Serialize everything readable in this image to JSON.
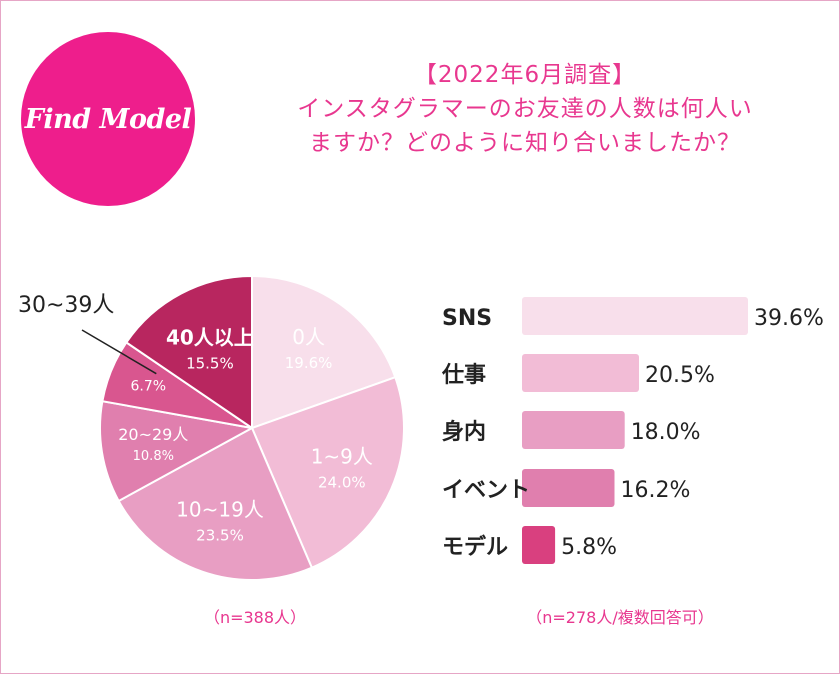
{
  "logo": {
    "text": "Find Model"
  },
  "title": {
    "line1": "【2022年6月調査】",
    "line2": "インスタグラマーのお友達の人数は何人い",
    "line3": "ますか？どのように知り合いましたか？"
  },
  "chart_data": [
    {
      "type": "pie",
      "categories": [
        "0人",
        "1~9人",
        "10~19人",
        "20~29人",
        "30~39人",
        "40人以上"
      ],
      "values": [
        19.6,
        24.0,
        23.5,
        10.8,
        6.7,
        15.5
      ],
      "value_labels": [
        "19.6%",
        "24.0%",
        "23.5%",
        "10.8%",
        "6.7%",
        "15.5%"
      ],
      "colors": [
        "#f8dfeb",
        "#f2bcd6",
        "#e89ec3",
        "#e07fae",
        "#d9568f",
        "#b8265f"
      ],
      "note": "（n=388人）"
    },
    {
      "type": "bar",
      "orientation": "horizontal",
      "categories": [
        "SNS",
        "仕事",
        "身内",
        "イベント",
        "モデル"
      ],
      "values": [
        39.6,
        20.5,
        18.0,
        16.2,
        5.8
      ],
      "value_labels": [
        "39.6%",
        "20.5%",
        "18.0%",
        "16.2%",
        "5.8%"
      ],
      "colors": [
        "#f8dfeb",
        "#f2bcd6",
        "#e89ec3",
        "#e07fae",
        "#d9407f"
      ],
      "note": "（n=278人/複数回答可）"
    }
  ]
}
